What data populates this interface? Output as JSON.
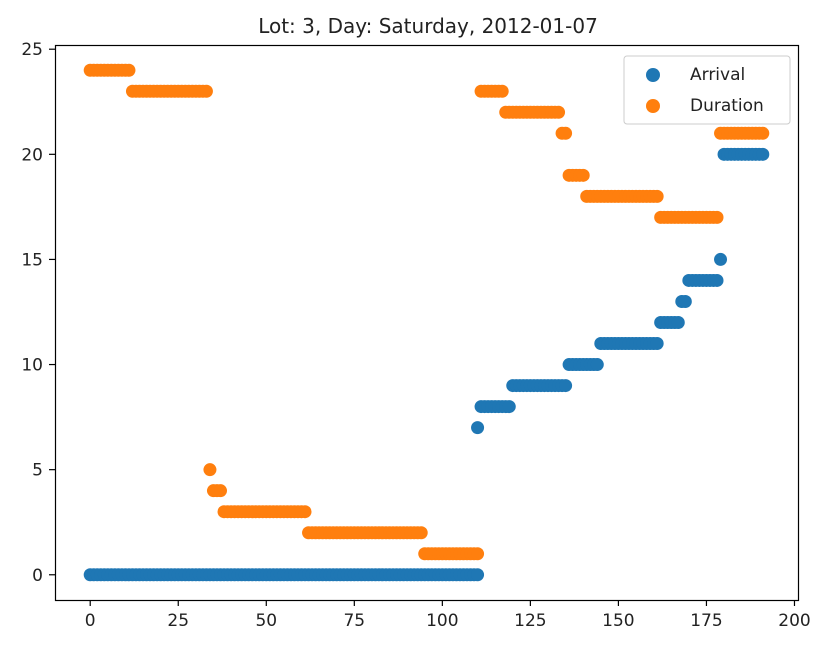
{
  "chart_data": {
    "type": "scatter",
    "title": "Lot: 3, Day: Saturday, 2012-01-07",
    "xlabel": "",
    "ylabel": "",
    "xlim": [
      -10,
      201
    ],
    "ylim": [
      -1.2,
      25.2
    ],
    "xticks": [
      0,
      25,
      50,
      75,
      100,
      125,
      150,
      175,
      200
    ],
    "yticks": [
      0,
      5,
      10,
      15,
      20,
      25
    ],
    "grid": false,
    "legend_position": "top-right",
    "series": [
      {
        "name": "Arrival",
        "color": "#1f77b4",
        "runs": [
          {
            "from": 0,
            "to": 110,
            "y": 0
          },
          {
            "from": 110,
            "to": 110,
            "y": 7
          },
          {
            "from": 111,
            "to": 119,
            "y": 8
          },
          {
            "from": 120,
            "to": 135,
            "y": 9
          },
          {
            "from": 136,
            "to": 144,
            "y": 10
          },
          {
            "from": 145,
            "to": 161,
            "y": 11
          },
          {
            "from": 162,
            "to": 167,
            "y": 12
          },
          {
            "from": 168,
            "to": 169,
            "y": 13
          },
          {
            "from": 170,
            "to": 178,
            "y": 14
          },
          {
            "from": 179,
            "to": 179,
            "y": 15
          },
          {
            "from": 180,
            "to": 191,
            "y": 20
          }
        ]
      },
      {
        "name": "Duration",
        "color": "#ff7f0e",
        "runs": [
          {
            "from": 0,
            "to": 11,
            "y": 24
          },
          {
            "from": 12,
            "to": 33,
            "y": 23
          },
          {
            "from": 34,
            "to": 34,
            "y": 5
          },
          {
            "from": 35,
            "to": 37,
            "y": 4
          },
          {
            "from": 38,
            "to": 61,
            "y": 3
          },
          {
            "from": 62,
            "to": 94,
            "y": 2
          },
          {
            "from": 95,
            "to": 110,
            "y": 1
          },
          {
            "from": 111,
            "to": 117,
            "y": 23
          },
          {
            "from": 118,
            "to": 133,
            "y": 22
          },
          {
            "from": 134,
            "to": 135,
            "y": 21
          },
          {
            "from": 136,
            "to": 140,
            "y": 19
          },
          {
            "from": 141,
            "to": 161,
            "y": 18
          },
          {
            "from": 162,
            "to": 178,
            "y": 17
          },
          {
            "from": 179,
            "to": 191,
            "y": 21
          }
        ]
      }
    ]
  }
}
